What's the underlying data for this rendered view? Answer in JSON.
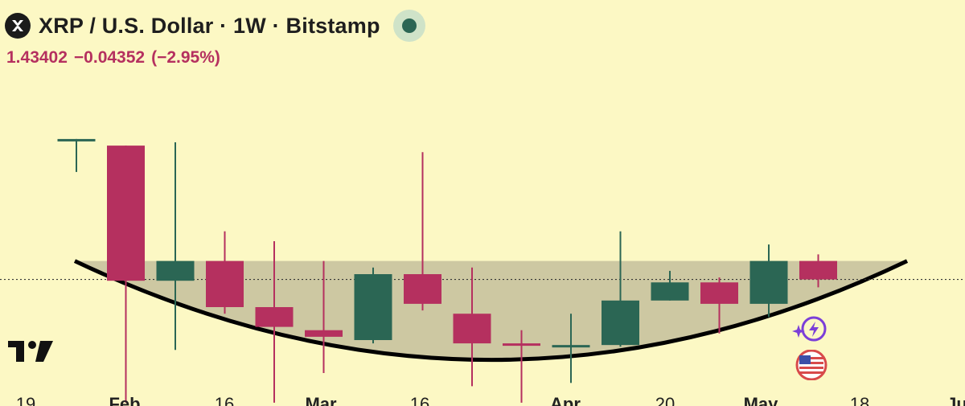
{
  "header": {
    "title": "XRP / U.S. Dollar · 1W · Bitstamp",
    "last_price": "1.43402",
    "change": "−0.04352",
    "change_pct": "(−2.95%)",
    "status_color": "#2b6654"
  },
  "icons": {
    "symbol_logo": "xrp-x-icon",
    "brand_logo": "tradingview-logo-icon",
    "assistant": "sparkle-bolt-icon",
    "market_flag": "us-flag-icon"
  },
  "colors": {
    "background": "#fcf8c4",
    "up": "#2b6654",
    "down": "#b5305f",
    "pattern_fill": "#cdc8a2",
    "pattern_stroke": "#000000"
  },
  "chart_data": {
    "type": "candlestick",
    "interval": "1W",
    "x_tick_labels": [
      "19",
      "Feb",
      "16",
      "Mar",
      "16",
      "Apr",
      "20",
      "May",
      "18",
      "Ju"
    ],
    "ylim": [
      1.05,
      1.8
    ],
    "current_price_line": 1.434,
    "candles": [
      {
        "open": 1.86,
        "high": 1.86,
        "low": 1.76,
        "close": 1.86
      },
      {
        "open": 1.84,
        "high": 1.84,
        "low": 1.06,
        "close": 1.43
      },
      {
        "open": 1.43,
        "high": 1.85,
        "low": 1.22,
        "close": 1.49
      },
      {
        "open": 1.49,
        "high": 1.58,
        "low": 1.33,
        "close": 1.35
      },
      {
        "open": 1.35,
        "high": 1.55,
        "low": 1.06,
        "close": 1.29
      },
      {
        "open": 1.28,
        "high": 1.49,
        "low": 1.15,
        "close": 1.26
      },
      {
        "open": 1.25,
        "high": 1.47,
        "low": 1.24,
        "close": 1.45
      },
      {
        "open": 1.45,
        "high": 1.82,
        "low": 1.34,
        "close": 1.36
      },
      {
        "open": 1.33,
        "high": 1.47,
        "low": 1.11,
        "close": 1.24
      },
      {
        "open": 1.24,
        "high": 1.28,
        "low": 1.06,
        "close": 1.235
      },
      {
        "open": 1.235,
        "high": 1.33,
        "low": 1.12,
        "close": 1.235
      },
      {
        "open": 1.235,
        "high": 1.58,
        "low": 1.23,
        "close": 1.37
      },
      {
        "open": 1.37,
        "high": 1.46,
        "low": 1.37,
        "close": 1.425
      },
      {
        "open": 1.425,
        "high": 1.44,
        "low": 1.27,
        "close": 1.36
      },
      {
        "open": 1.36,
        "high": 1.54,
        "low": 1.32,
        "close": 1.49
      },
      {
        "open": 1.49,
        "high": 1.51,
        "low": 1.41,
        "close": 1.434
      }
    ],
    "pattern": {
      "type": "cup",
      "rim_level": 1.49,
      "bottom_price": 1.19
    },
    "grid": false,
    "legend": "none"
  }
}
